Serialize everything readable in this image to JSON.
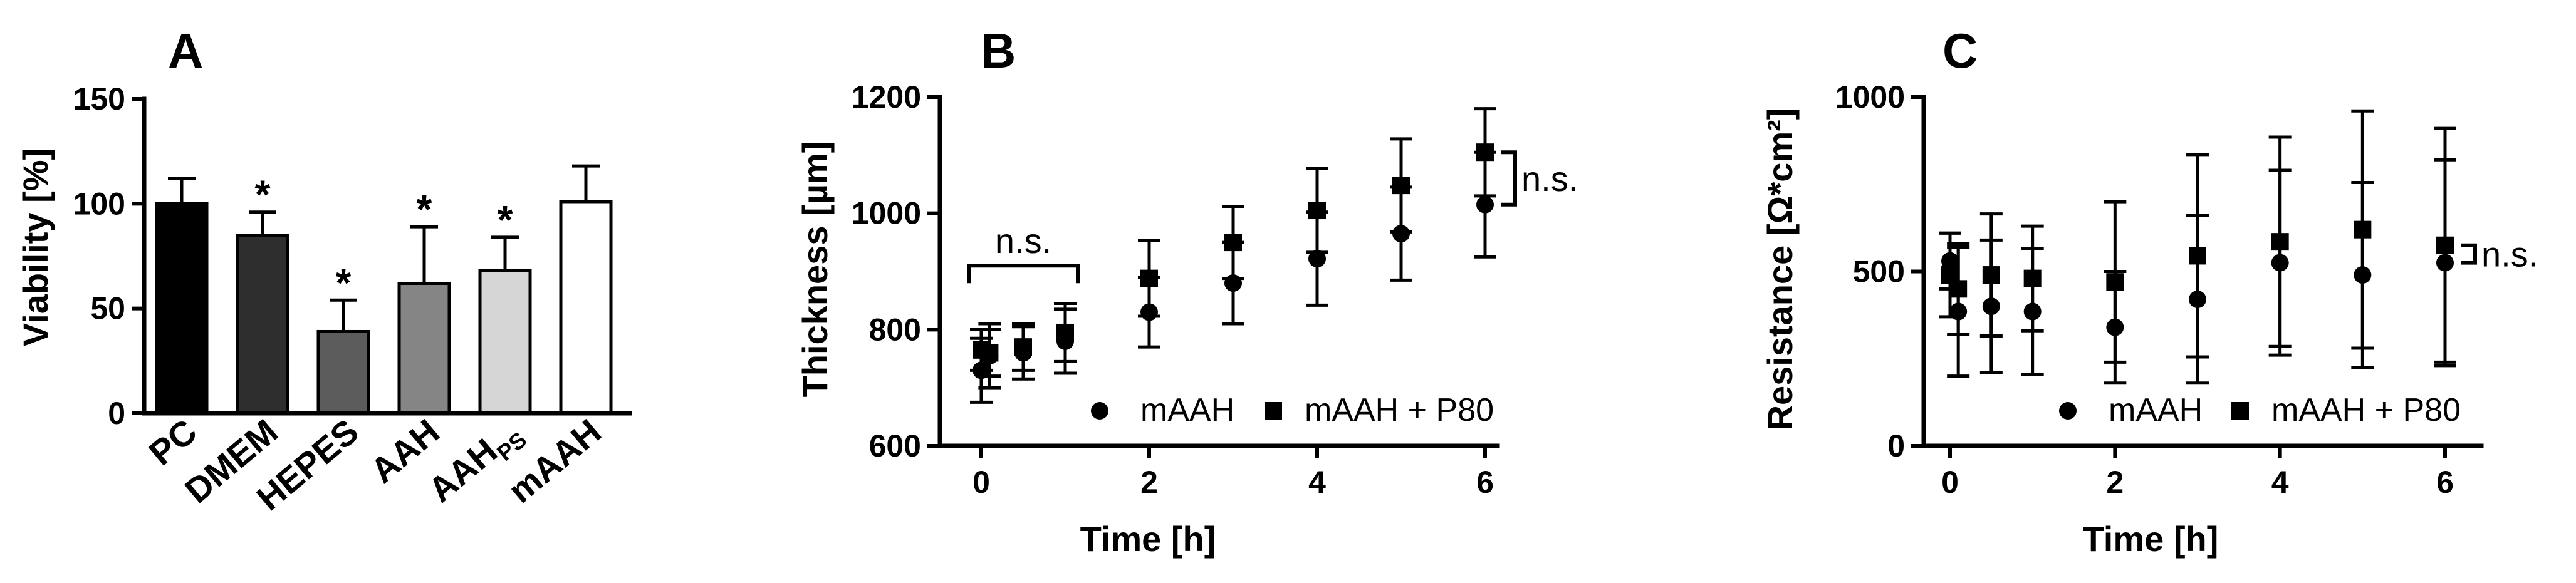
{
  "chart_data": [
    {
      "type": "bar",
      "panel_label": "A",
      "title": "",
      "xlabel": "",
      "ylabel": "Viability [%]",
      "ylim": [
        0,
        150
      ],
      "yticks": [
        "0",
        "50",
        "100",
        "150"
      ],
      "categories": [
        "PC",
        "DMEM",
        "HEPES",
        "AAH",
        "AAH",
        "mAAH"
      ],
      "category_subscripts": [
        "",
        "",
        "",
        "",
        "PS",
        ""
      ],
      "values": [
        100,
        85,
        39,
        62,
        68,
        101
      ],
      "errors": [
        12,
        11,
        15,
        27,
        16,
        17
      ],
      "significance": [
        "",
        "*",
        "*",
        "*",
        "*",
        ""
      ],
      "bar_colors": [
        "#000000",
        "#2e2e2e",
        "#5c5c5c",
        "#858585",
        "#d6d6d6",
        "#ffffff"
      ]
    },
    {
      "type": "scatter",
      "panel_label": "B",
      "title": "",
      "xlabel": "Time [h]",
      "ylabel": "Thickness [µm]",
      "xlim": [
        0,
        6
      ],
      "ylim": [
        600,
        1200
      ],
      "xticks": [
        "0",
        "2",
        "4",
        "6"
      ],
      "yticks": [
        "600",
        "800",
        "1000",
        "1200"
      ],
      "x": [
        0,
        0.1,
        0.5,
        1,
        2,
        3,
        4,
        5,
        6
      ],
      "series": [
        {
          "name": "mAAH",
          "marker": "circle",
          "values": [
            730,
            755,
            760,
            780,
            830,
            880,
            922,
            965,
            1015
          ],
          "errors": [
            55,
            55,
            45,
            55,
            60,
            70,
            80,
            80,
            90
          ]
        },
        {
          "name": "mAAH + P80",
          "marker": "square",
          "values": [
            765,
            760,
            770,
            795,
            888,
            950,
            1005,
            1048,
            1105
          ],
          "errors": [
            35,
            40,
            40,
            50,
            65,
            62,
            72,
            80,
            75
          ]
        }
      ],
      "annotations": [
        {
          "text": "n.s.",
          "type": "bracket-top",
          "x_range": [
            0,
            1
          ],
          "y": 910
        },
        {
          "text": "n.s.",
          "type": "bracket-right",
          "x": 6,
          "y_range": [
            1015,
            1105
          ]
        }
      ],
      "legend_position": "bottom-right"
    },
    {
      "type": "scatter",
      "panel_label": "C",
      "title": "",
      "xlabel": "Time [h]",
      "ylabel": "Resistance [Ω*cm²]",
      "xlim": [
        0,
        6
      ],
      "ylim": [
        0,
        1000
      ],
      "xticks": [
        "0",
        "2",
        "4",
        "6"
      ],
      "yticks": [
        "0",
        "500",
        "1000"
      ],
      "x": [
        0,
        0.1,
        0.5,
        1,
        2,
        3,
        4,
        5,
        6
      ],
      "series": [
        {
          "name": "mAAH",
          "marker": "circle",
          "values": [
            530,
            385,
            400,
            385,
            340,
            420,
            525,
            490,
            525
          ],
          "errors": [
            80,
            185,
            190,
            180,
            160,
            240,
            265,
            265,
            295
          ]
        },
        {
          "name": "mAAH + P80",
          "marker": "square",
          "values": [
            490,
            450,
            490,
            480,
            470,
            545,
            585,
            620,
            575
          ],
          "errors": [
            120,
            130,
            175,
            150,
            230,
            290,
            300,
            340,
            335
          ]
        }
      ],
      "annotations": [
        {
          "text": "n.s.",
          "type": "bracket-right",
          "x": 6,
          "y_range": [
            525,
            575
          ]
        }
      ],
      "legend_position": "bottom-right"
    }
  ]
}
